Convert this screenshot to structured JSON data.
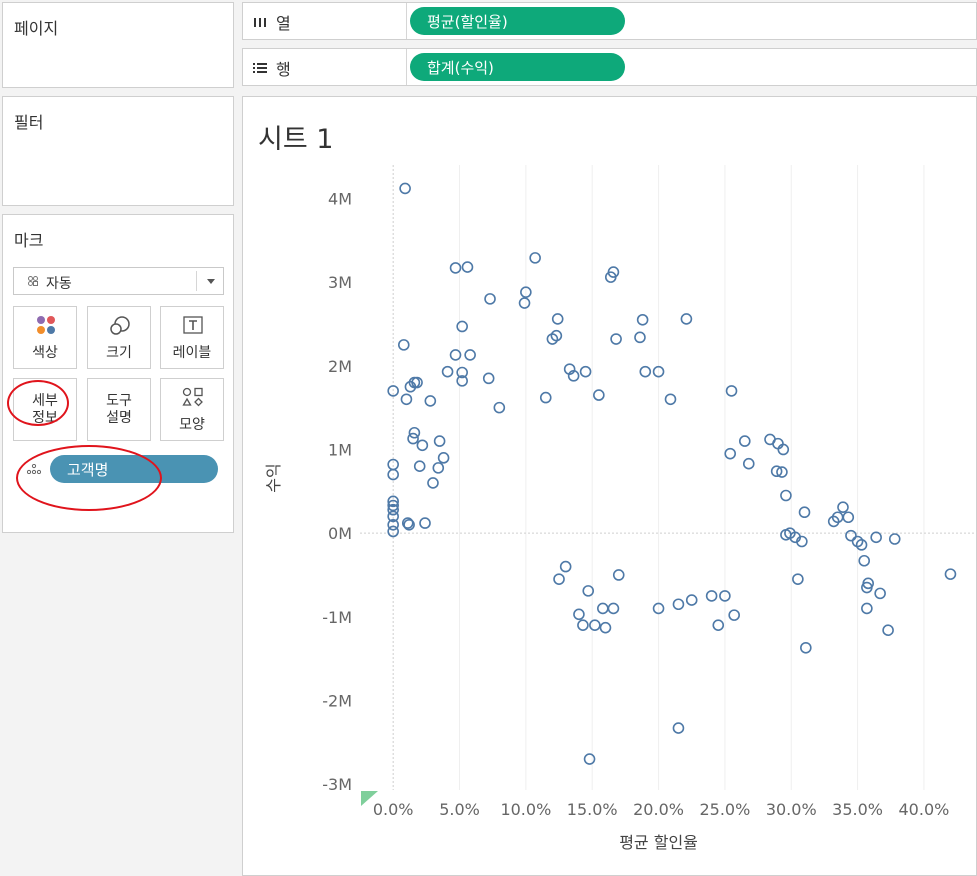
{
  "left_panel": {
    "pages_title": "페이지",
    "filters_title": "필터",
    "marks_title": "마크",
    "mark_type": "자동",
    "buttons": {
      "color": "색상",
      "size": "크기",
      "label": "레이블",
      "detail_1": "세부",
      "detail_2": "정보",
      "tooltip_1": "도구",
      "tooltip_2": "설명",
      "shape": "모양"
    },
    "detail_field": "고객명"
  },
  "shelves": {
    "columns_label": "열",
    "columns_pill": "평균(할인율)",
    "rows_label": "행",
    "rows_pill": "합계(수익)"
  },
  "sheet": {
    "title": "시트 1"
  },
  "colors": {
    "mark": "#4e79a7",
    "pill_green": "#0ea97a",
    "pill_blue": "#4a93b3",
    "annotation": "#e0141c"
  },
  "chart_data": {
    "type": "scatter",
    "xlabel": "평균 할인율",
    "ylabel": "수익",
    "xlim": [
      -0.025,
      0.44
    ],
    "ylim": [
      -3.07,
      4.4
    ],
    "x_ticks": [
      0.0,
      0.05,
      0.1,
      0.15,
      0.2,
      0.25,
      0.3,
      0.35,
      0.4
    ],
    "x_tick_labels": [
      "0.0%",
      "5.0%",
      "10.0%",
      "15.0%",
      "20.0%",
      "25.0%",
      "30.0%",
      "35.0%",
      "40.0%"
    ],
    "y_ticks": [
      -3,
      -2,
      -1,
      0,
      1,
      2,
      3,
      4
    ],
    "y_tick_labels": [
      "-3M",
      "-2M",
      "-1M",
      "0M",
      "1M",
      "2M",
      "3M",
      "4M"
    ],
    "y_unit": "M",
    "grid": true,
    "points": [
      [
        0.009,
        4.12
      ],
      [
        0.047,
        3.17
      ],
      [
        0.056,
        3.18
      ],
      [
        0.107,
        3.29
      ],
      [
        0.164,
        3.06
      ],
      [
        0.166,
        3.12
      ],
      [
        0.073,
        2.8
      ],
      [
        0.099,
        2.75
      ],
      [
        0.1,
        2.88
      ],
      [
        0.221,
        2.56
      ],
      [
        0.124,
        2.56
      ],
      [
        0.188,
        2.55
      ],
      [
        0.052,
        2.47
      ],
      [
        0.12,
        2.32
      ],
      [
        0.123,
        2.36
      ],
      [
        0.168,
        2.32
      ],
      [
        0.186,
        2.34
      ],
      [
        0.008,
        2.25
      ],
      [
        0.047,
        2.13
      ],
      [
        0.058,
        2.13
      ],
      [
        0.041,
        1.93
      ],
      [
        0.052,
        1.92
      ],
      [
        0.133,
        1.96
      ],
      [
        0.136,
        1.88
      ],
      [
        0.19,
        1.93
      ],
      [
        0.2,
        1.93
      ],
      [
        0.145,
        1.93
      ],
      [
        0.052,
        1.82
      ],
      [
        0.072,
        1.85
      ],
      [
        0.016,
        1.8
      ],
      [
        0.255,
        1.7
      ],
      [
        0.209,
        1.6
      ],
      [
        0.155,
        1.65
      ],
      [
        0.115,
        1.62
      ],
      [
        0.08,
        1.5
      ],
      [
        0.29,
        1.07
      ],
      [
        0.294,
        1.0
      ],
      [
        0.284,
        1.12
      ],
      [
        0.265,
        1.1
      ],
      [
        0.254,
        0.95
      ],
      [
        0.268,
        0.83
      ],
      [
        0.293,
        0.73
      ],
      [
        0.289,
        0.74
      ],
      [
        0.296,
        0.45
      ],
      [
        0.299,
        0.0
      ],
      [
        0.296,
        -0.02
      ],
      [
        0.31,
        0.25
      ],
      [
        0.303,
        -0.05
      ],
      [
        0.308,
        -0.1
      ],
      [
        0.305,
        -0.55
      ],
      [
        0.311,
        -1.37
      ],
      [
        0.332,
        0.14
      ],
      [
        0.335,
        0.19
      ],
      [
        0.339,
        0.31
      ],
      [
        0.343,
        0.19
      ],
      [
        0.345,
        -0.03
      ],
      [
        0.35,
        -0.1
      ],
      [
        0.353,
        -0.14
      ],
      [
        0.355,
        -0.33
      ],
      [
        0.357,
        -0.65
      ],
      [
        0.358,
        -0.6
      ],
      [
        0.357,
        -0.9
      ],
      [
        0.364,
        -0.05
      ],
      [
        0.367,
        -0.72
      ],
      [
        0.373,
        -1.16
      ],
      [
        0.378,
        -0.07
      ],
      [
        0.42,
        -0.49
      ],
      [
        0.24,
        -0.75
      ],
      [
        0.25,
        -0.75
      ],
      [
        0.245,
        -1.1
      ],
      [
        0.257,
        -0.98
      ],
      [
        0.215,
        -2.33
      ],
      [
        0.148,
        -2.7
      ],
      [
        0.143,
        -1.1
      ],
      [
        0.14,
        -0.97
      ],
      [
        0.152,
        -1.1
      ],
      [
        0.16,
        -1.13
      ],
      [
        0.147,
        -0.69
      ],
      [
        0.158,
        -0.9
      ],
      [
        0.166,
        -0.9
      ],
      [
        0.125,
        -0.55
      ],
      [
        0.13,
        -0.4
      ],
      [
        0.2,
        -0.9
      ],
      [
        0.215,
        -0.85
      ],
      [
        0.225,
        -0.8
      ],
      [
        0.17,
        -0.5
      ],
      [
        -0.0,
        0.82
      ],
      [
        0.0,
        0.7
      ],
      [
        -0.0,
        0.38
      ],
      [
        0.0,
        0.33
      ],
      [
        0.0,
        0.28
      ],
      [
        0.0,
        0.2
      ],
      [
        0.0,
        0.1
      ],
      [
        0.0,
        0.02
      ],
      [
        0.0,
        1.7
      ],
      [
        0.01,
        1.6
      ],
      [
        0.013,
        1.75
      ],
      [
        0.018,
        1.8
      ],
      [
        0.015,
        1.13
      ],
      [
        0.016,
        1.2
      ],
      [
        0.022,
        1.05
      ],
      [
        0.02,
        0.8
      ],
      [
        0.011,
        0.12
      ],
      [
        0.012,
        0.1
      ],
      [
        0.024,
        0.12
      ],
      [
        0.03,
        0.6
      ],
      [
        0.034,
        0.78
      ],
      [
        0.038,
        0.9
      ],
      [
        0.028,
        1.58
      ],
      [
        0.035,
        1.1
      ]
    ]
  }
}
